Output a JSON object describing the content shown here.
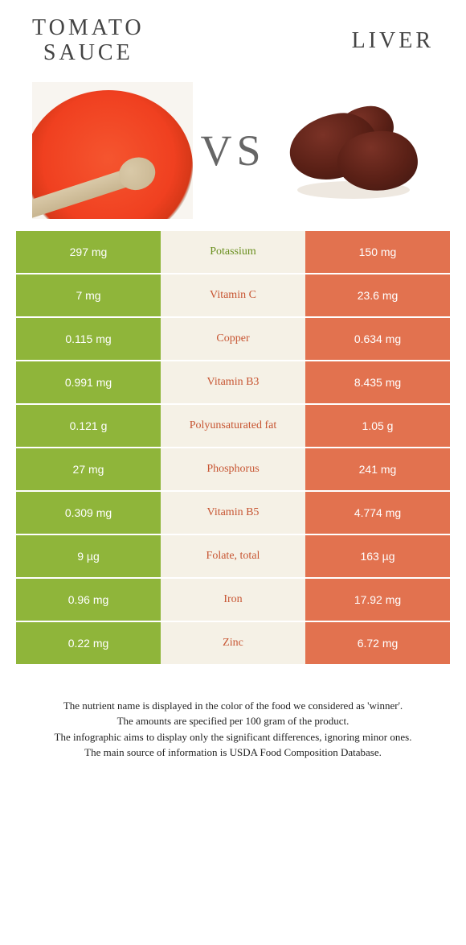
{
  "titles": {
    "left_line1": "TOMATO",
    "left_line2": "SAUCE",
    "right": "LIVER"
  },
  "vs": "VS",
  "colors": {
    "left_cell": "#8fb53a",
    "right_cell": "#e2724f",
    "mid_bg": "#f5f1e6",
    "label_green": "#6a8f1f",
    "label_orange": "#c75532"
  },
  "rows": [
    {
      "left": "297 mg",
      "label": "Potassium",
      "right": "150 mg",
      "winner": "left"
    },
    {
      "left": "7 mg",
      "label": "Vitamin C",
      "right": "23.6 mg",
      "winner": "right"
    },
    {
      "left": "0.115 mg",
      "label": "Copper",
      "right": "0.634 mg",
      "winner": "right"
    },
    {
      "left": "0.991 mg",
      "label": "Vitamin B3",
      "right": "8.435 mg",
      "winner": "right"
    },
    {
      "left": "0.121 g",
      "label": "Polyunsaturated fat",
      "right": "1.05 g",
      "winner": "right"
    },
    {
      "left": "27 mg",
      "label": "Phosphorus",
      "right": "241 mg",
      "winner": "right"
    },
    {
      "left": "0.309 mg",
      "label": "Vitamin B5",
      "right": "4.774 mg",
      "winner": "right"
    },
    {
      "left": "9 µg",
      "label": "Folate, total",
      "right": "163 µg",
      "winner": "right"
    },
    {
      "left": "0.96 mg",
      "label": "Iron",
      "right": "17.92 mg",
      "winner": "right"
    },
    {
      "left": "0.22 mg",
      "label": "Zinc",
      "right": "6.72 mg",
      "winner": "right"
    }
  ],
  "footer": {
    "l1": "The nutrient name is displayed in the color of the food we considered as 'winner'.",
    "l2": "The amounts are specified per 100 gram of the product.",
    "l3": "The infographic aims to display only the significant differences, ignoring minor ones.",
    "l4": "The main source of information is USDA Food Composition Database."
  }
}
